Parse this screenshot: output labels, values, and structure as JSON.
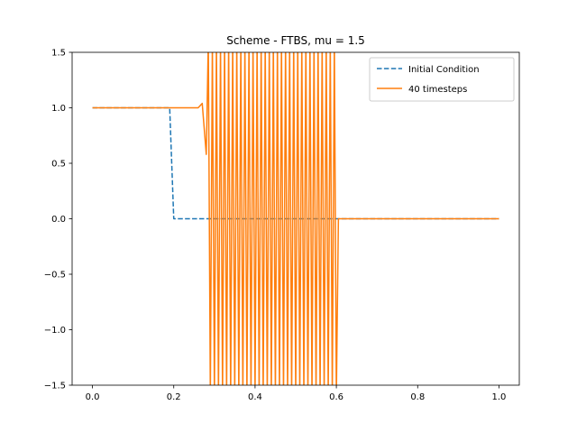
{
  "chart_data": {
    "type": "line",
    "title": "Scheme - FTBS, mu = 1.5",
    "xlabel": "",
    "ylabel": "",
    "xlim": [
      -0.05,
      1.05
    ],
    "ylim": [
      -1.5,
      1.5
    ],
    "xticks": [
      0.0,
      0.2,
      0.4,
      0.6,
      0.8,
      1.0
    ],
    "xtick_labels": [
      "0.0",
      "0.2",
      "0.4",
      "0.6",
      "0.8",
      "1.0"
    ],
    "yticks": [
      -1.5,
      -1.0,
      -0.5,
      0.0,
      0.5,
      1.0,
      1.5
    ],
    "ytick_labels": [
      "−1.5",
      "−1.0",
      "−0.5",
      "0.0",
      "0.5",
      "1.0",
      "1.5"
    ],
    "grid": false,
    "legend": {
      "position": "top-right",
      "entries": [
        "Initial Condition",
        "40 timesteps"
      ]
    },
    "series": [
      {
        "name": "Initial Condition",
        "color": "#1f77b4",
        "style": "dashed",
        "x": [
          0.0,
          0.19,
          0.2,
          1.0
        ],
        "y": [
          1.0,
          1.0,
          0.0,
          0.0
        ]
      },
      {
        "name": "40 timesteps",
        "color": "#ff7f0e",
        "style": "solid",
        "x": [
          0.0,
          0.26,
          0.27,
          0.28,
          0.285,
          0.29,
          0.295,
          0.3,
          0.305,
          0.31,
          0.315,
          0.32,
          0.325,
          0.33,
          0.335,
          0.34,
          0.345,
          0.35,
          0.355,
          0.36,
          0.365,
          0.37,
          0.375,
          0.38,
          0.385,
          0.39,
          0.395,
          0.4,
          0.405,
          0.41,
          0.415,
          0.42,
          0.425,
          0.43,
          0.435,
          0.44,
          0.445,
          0.45,
          0.455,
          0.46,
          0.465,
          0.47,
          0.475,
          0.48,
          0.485,
          0.49,
          0.495,
          0.5,
          0.505,
          0.51,
          0.515,
          0.52,
          0.525,
          0.53,
          0.535,
          0.54,
          0.545,
          0.55,
          0.555,
          0.56,
          0.565,
          0.57,
          0.575,
          0.58,
          0.585,
          0.59,
          0.595,
          0.6,
          0.605,
          1.0
        ],
        "y": [
          1.0,
          1.0,
          1.04,
          0.58,
          1.6,
          -1.6,
          1.6,
          -1.6,
          1.6,
          -1.6,
          1.6,
          -1.6,
          1.6,
          -1.6,
          1.6,
          -1.6,
          1.6,
          -1.6,
          1.6,
          -1.6,
          1.6,
          -1.6,
          1.6,
          -1.6,
          1.6,
          -1.6,
          1.6,
          -1.6,
          1.6,
          -1.6,
          1.6,
          -1.6,
          1.6,
          -1.6,
          1.6,
          -1.6,
          1.6,
          -1.6,
          1.6,
          -1.6,
          1.6,
          -1.6,
          1.6,
          -1.6,
          1.6,
          -1.6,
          1.6,
          -1.6,
          1.6,
          -1.6,
          1.6,
          -1.6,
          1.6,
          -1.6,
          1.6,
          -1.6,
          1.6,
          -1.6,
          1.6,
          -1.6,
          1.6,
          -1.6,
          1.6,
          -1.6,
          1.6,
          -1.6,
          1.6,
          -1.6,
          0.0,
          0.0
        ]
      }
    ]
  }
}
